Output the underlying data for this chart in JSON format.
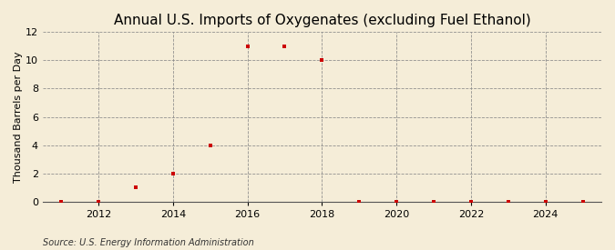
{
  "title": "Annual U.S. Imports of Oxygenates (excluding Fuel Ethanol)",
  "ylabel": "Thousand Barrels per Day",
  "source": "Source: U.S. Energy Information Administration",
  "years": [
    2011,
    2012,
    2013,
    2014,
    2015,
    2016,
    2017,
    2018,
    2019,
    2020,
    2021,
    2022,
    2023,
    2024,
    2025
  ],
  "values": [
    0,
    0,
    1,
    2,
    4,
    11,
    11,
    10,
    0,
    0,
    0,
    0,
    0,
    0,
    0
  ],
  "marker_color": "#cc0000",
  "marker": "s",
  "marker_size": 3.5,
  "xlim": [
    2010.5,
    2025.5
  ],
  "ylim": [
    0,
    12
  ],
  "yticks": [
    0,
    2,
    4,
    6,
    8,
    10,
    12
  ],
  "xticks": [
    2012,
    2014,
    2016,
    2018,
    2020,
    2022,
    2024
  ],
  "background_color": "#f5edd8",
  "grid_color": "#888888",
  "title_fontsize": 11,
  "label_fontsize": 8,
  "tick_fontsize": 8,
  "source_fontsize": 7
}
